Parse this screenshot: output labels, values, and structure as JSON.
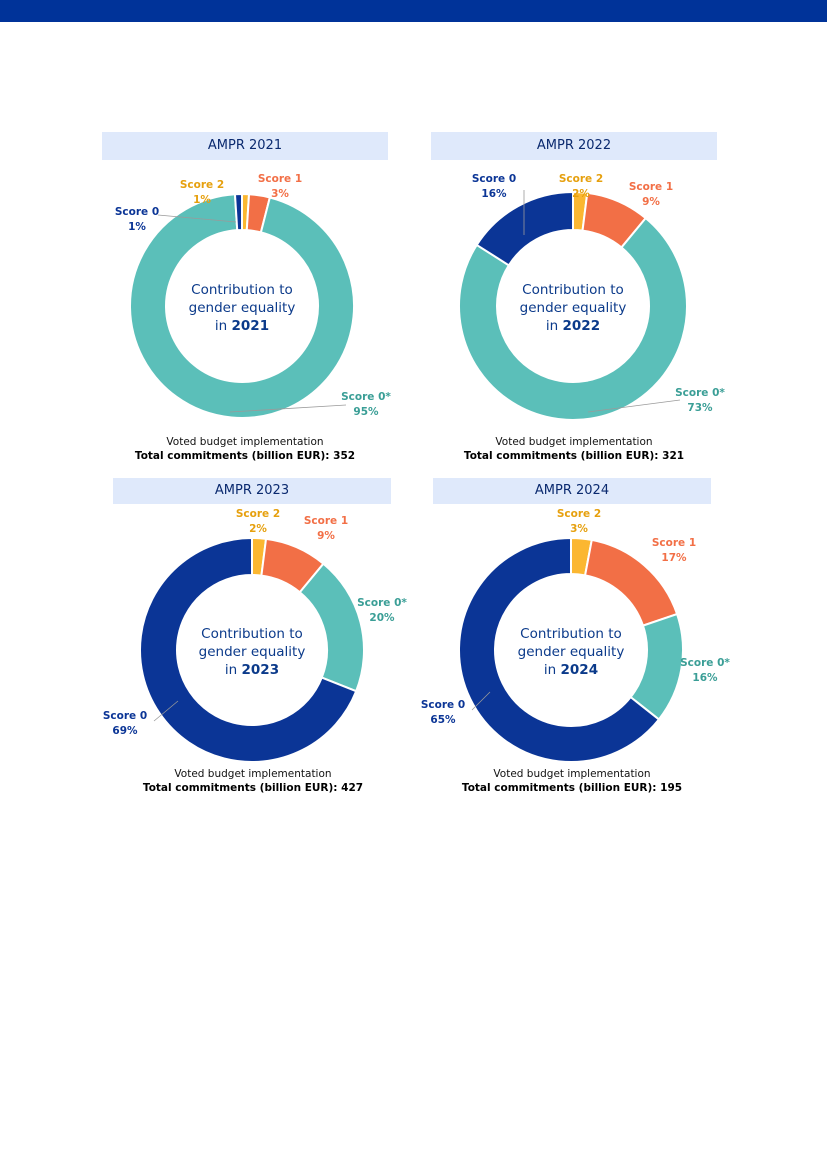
{
  "colors": {
    "score0": "#0b3596",
    "score0star": "#5bbfb9",
    "score1": "#f26f46",
    "score2": "#fbb731",
    "score0_label": "#0b3596",
    "score0star_label": "#3a9e96",
    "score1_label": "#f26f46",
    "score2_label": "#e6a00e"
  },
  "center_text": {
    "line1": "Contribution to",
    "line2": "gender equality",
    "prefix": "in"
  },
  "caption": {
    "line1": "Voted budget implementation",
    "line2_prefix": "Total commitments (billion EUR):"
  },
  "chart_data": [
    {
      "type": "pie",
      "title": "AMPR 2021",
      "year": "2021",
      "total_commitments": 352,
      "slices": [
        {
          "label": "Score 2",
          "value": 1,
          "display": "1%"
        },
        {
          "label": "Score 1",
          "value": 3,
          "display": "3%"
        },
        {
          "label": "Score 0*",
          "value": 95,
          "display": "95%"
        },
        {
          "label": "Score 0",
          "value": 1,
          "display": "1%"
        }
      ]
    },
    {
      "type": "pie",
      "title": "AMPR 2022",
      "year": "2022",
      "total_commitments": 321,
      "slices": [
        {
          "label": "Score 2",
          "value": 2,
          "display": "2%"
        },
        {
          "label": "Score 1",
          "value": 9,
          "display": "9%"
        },
        {
          "label": "Score 0*",
          "value": 73,
          "display": "73%"
        },
        {
          "label": "Score 0",
          "value": 16,
          "display": "16%"
        }
      ]
    },
    {
      "type": "pie",
      "title": "AMPR 2023",
      "year": "2023",
      "total_commitments": 427,
      "slices": [
        {
          "label": "Score 2",
          "value": 2,
          "display": "2%"
        },
        {
          "label": "Score 1",
          "value": 9,
          "display": "9%"
        },
        {
          "label": "Score 0*",
          "value": 20,
          "display": "20%"
        },
        {
          "label": "Score 0",
          "value": 69,
          "display": "69%"
        }
      ]
    },
    {
      "type": "pie",
      "title": "AMPR 2024",
      "year": "2024",
      "total_commitments": 195,
      "slices": [
        {
          "label": "Score 2",
          "value": 3,
          "display": "3%"
        },
        {
          "label": "Score 1",
          "value": 17,
          "display": "17%"
        },
        {
          "label": "Score 0*",
          "value": 16,
          "display": "16%"
        },
        {
          "label": "Score 0",
          "value": 65,
          "display": "65%"
        }
      ]
    }
  ]
}
